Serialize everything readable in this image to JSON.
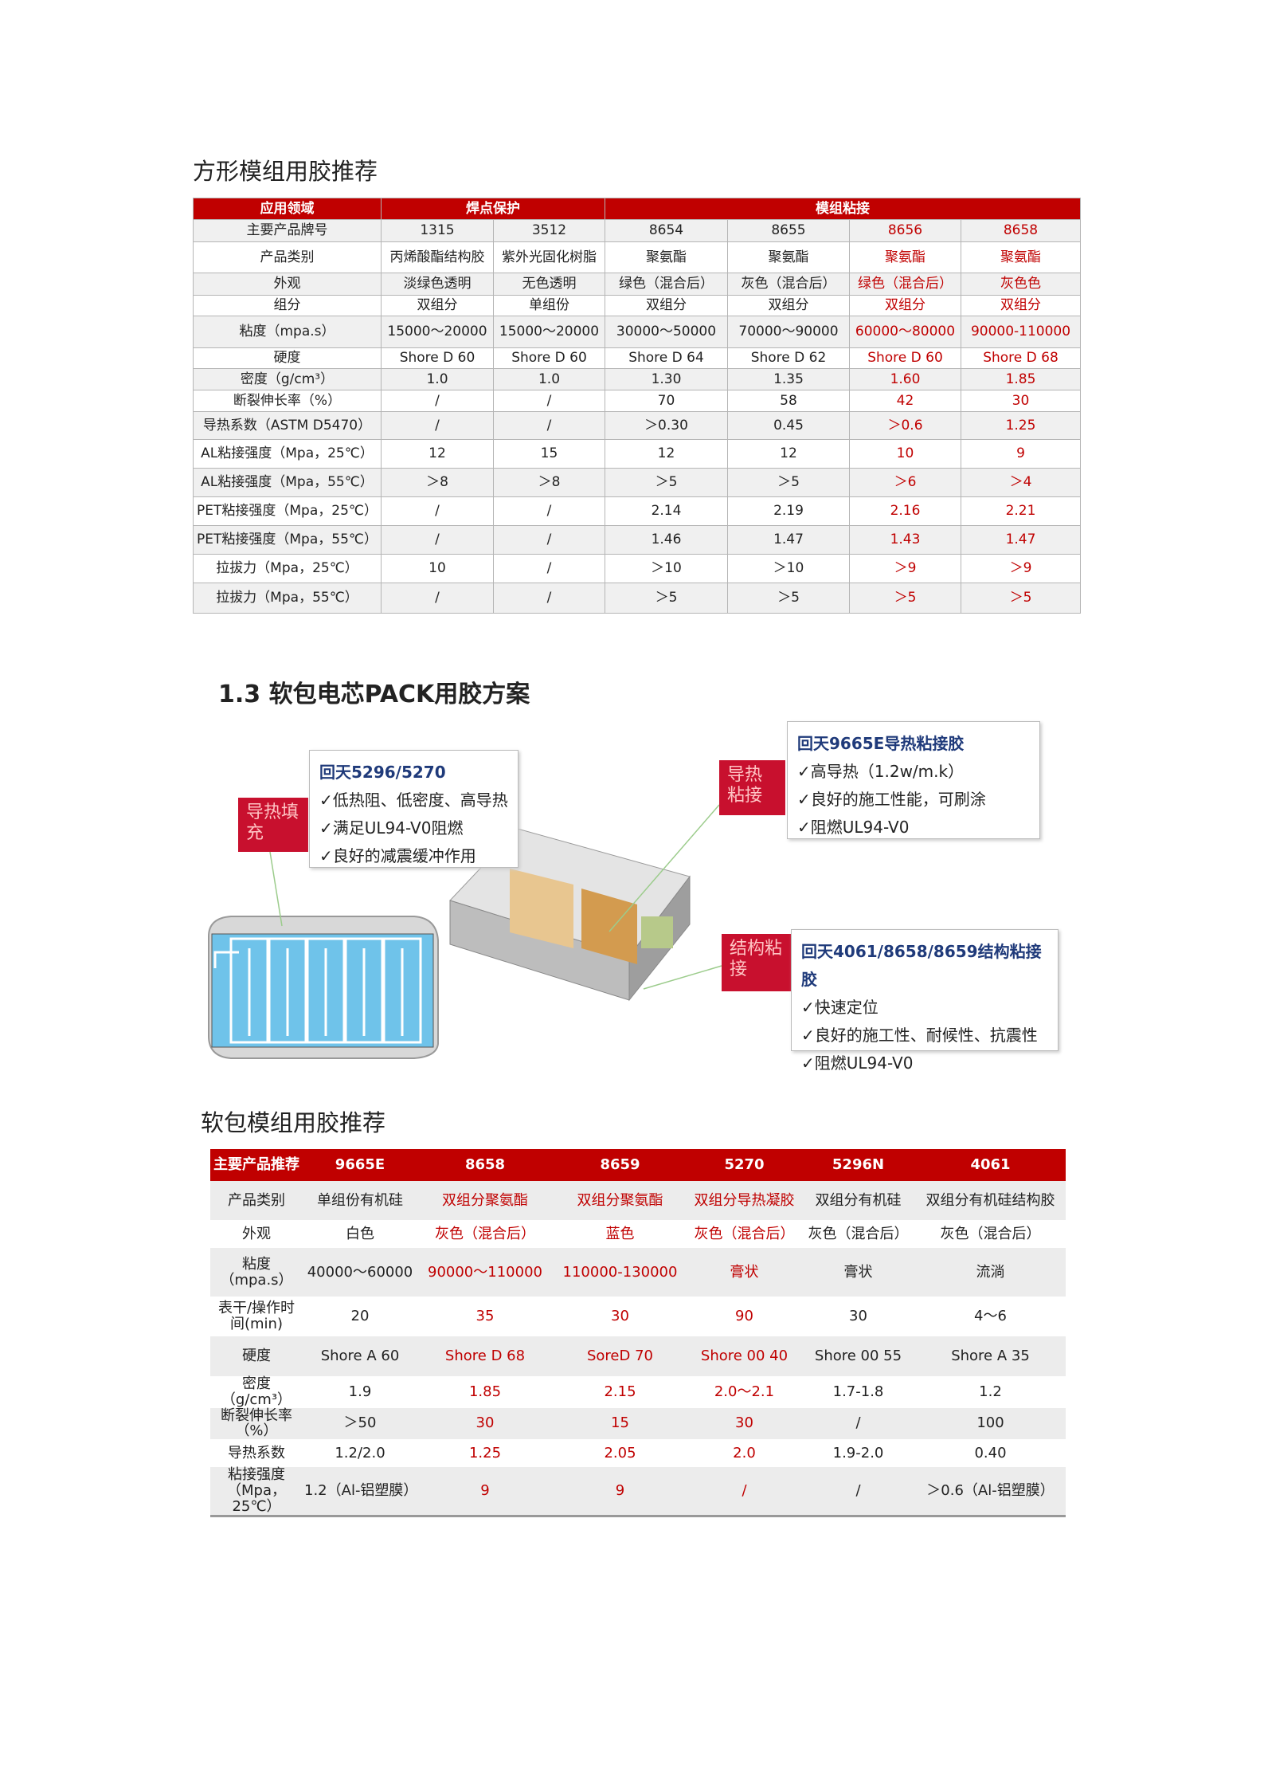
{
  "section1": {
    "title": "方形模组用胶推荐",
    "table": {
      "header": [
        "应用领域",
        "焊点保护",
        "模组粘接"
      ],
      "rows": [
        [
          "主要产品牌号",
          "1315",
          "3512",
          "8654",
          "8655",
          "8656",
          "8658"
        ],
        [
          "产品类别",
          "丙烯酸酯结构胶",
          "紫外光固化树脂",
          "聚氨酯",
          "聚氨酯",
          "聚氨酯",
          "聚氨酯"
        ],
        [
          "外观",
          "淡绿色透明",
          "无色透明",
          "绿色（混合后）",
          "灰色（混合后）",
          "绿色（混合后）",
          "灰色色"
        ],
        [
          "组分",
          "双组分",
          "单组份",
          "双组分",
          "双组分",
          "双组分",
          "双组分"
        ],
        [
          "粘度（mpa.s）",
          "15000～20000",
          "15000～20000",
          "30000～50000",
          "70000～90000",
          "60000～80000",
          "90000-110000"
        ],
        [
          "硬度",
          "Shore D 60",
          "Shore D 60",
          "Shore D 64",
          "Shore D 62",
          "Shore D 60",
          "Shore D 68"
        ],
        [
          "密度（g/cm³）",
          "1.0",
          "1.0",
          "1.30",
          "1.35",
          "1.60",
          "1.85"
        ],
        [
          "断裂伸长率（%）",
          "/",
          "/",
          "70",
          "58",
          "42",
          "30"
        ],
        [
          "导热系数（ASTM D5470）",
          "/",
          "/",
          "＞0.30",
          "0.45",
          "＞0.6",
          "1.25"
        ],
        [
          "AL粘接强度（Mpa，25℃）",
          "12",
          "15",
          "12",
          "12",
          "10",
          "9"
        ],
        [
          "AL粘接强度（Mpa，55℃）",
          "＞8",
          "＞8",
          "＞5",
          "＞5",
          "＞6",
          "＞4"
        ],
        [
          "PET粘接强度（Mpa，25℃）",
          "/",
          "/",
          "2.14",
          "2.19",
          "2.16",
          "2.21"
        ],
        [
          "PET粘接强度（Mpa，55℃）",
          "/",
          "/",
          "1.46",
          "1.47",
          "1.43",
          "1.47"
        ],
        [
          "拉拔力（Mpa，25℃）",
          "10",
          "/",
          "＞10",
          "＞10",
          "＞9",
          "＞9"
        ],
        [
          "拉拔力（Mpa，55℃）",
          "/",
          "/",
          "＞5",
          "＞5",
          "＞5",
          "＞5"
        ]
      ]
    }
  },
  "section2": {
    "title": "1.3 软包电芯PACK用胶方案",
    "callouts": [
      {
        "tag": "导热填充",
        "title": "回天5296/5270",
        "items": [
          "✓低热阻、低密度、高导热",
          "✓满足UL94-V0阻燃",
          "✓良好的减震缓冲作用"
        ]
      },
      {
        "tag": "导热粘接",
        "title": "回天9665E导热粘接胶",
        "items": [
          "✓高导热（1.2w/m.k）",
          "✓良好的施工性能，可刷涂",
          "✓阻燃UL94-V0"
        ]
      },
      {
        "tag": "结构粘接",
        "title": "回天4061/8658/8659结构粘接胶",
        "items": [
          "✓快速定位",
          "✓良好的施工性、耐候性、抗震性",
          "✓阻燃UL94-V0"
        ]
      }
    ]
  },
  "section3": {
    "title": "软包模组用胶推荐",
    "table": {
      "header": [
        "主要产品推荐",
        "9665E",
        "8658",
        "8659",
        "5270",
        "5296N",
        "4061"
      ],
      "rows": [
        [
          "产品类别",
          "单组份有机硅",
          "双组分聚氨酯",
          "双组分聚氨酯",
          "双组分导热凝胶",
          "双组分有机硅",
          "双组分有机硅结构胶"
        ],
        [
          "外观",
          "白色",
          "灰色（混合后）",
          "蓝色",
          "灰色（混合后）",
          "灰色（混合后）",
          "灰色（混合后）"
        ],
        [
          "粘度（mpa.s）",
          "40000～60000",
          "90000～110000",
          "110000-130000",
          "膏状",
          "膏状",
          "流淌"
        ],
        [
          "表干/操作时间(min)",
          "20",
          "35",
          "30",
          "90",
          "30",
          "4～6"
        ],
        [
          "硬度",
          "Shore A 60",
          "Shore D 68",
          "SoreD 70",
          "Shore 00 40",
          "Shore 00 55",
          "Shore A 35"
        ],
        [
          "密度（g/cm³）",
          "1.9",
          "1.85",
          "2.15",
          "2.0～2.1",
          "1.7-1.8",
          "1.2"
        ],
        [
          "断裂伸长率（%）",
          "＞50",
          "30",
          "15",
          "30",
          "/",
          "100"
        ],
        [
          "导热系数",
          "1.2/2.0",
          "1.25",
          "2.05",
          "2.0",
          "1.9-2.0",
          "0.40"
        ],
        [
          "粘接强度（Mpa，25℃）",
          "1.2（Al-铝塑膜）",
          "9",
          "9",
          "/",
          "/",
          "＞0.6（Al-铝塑膜）"
        ]
      ]
    }
  }
}
